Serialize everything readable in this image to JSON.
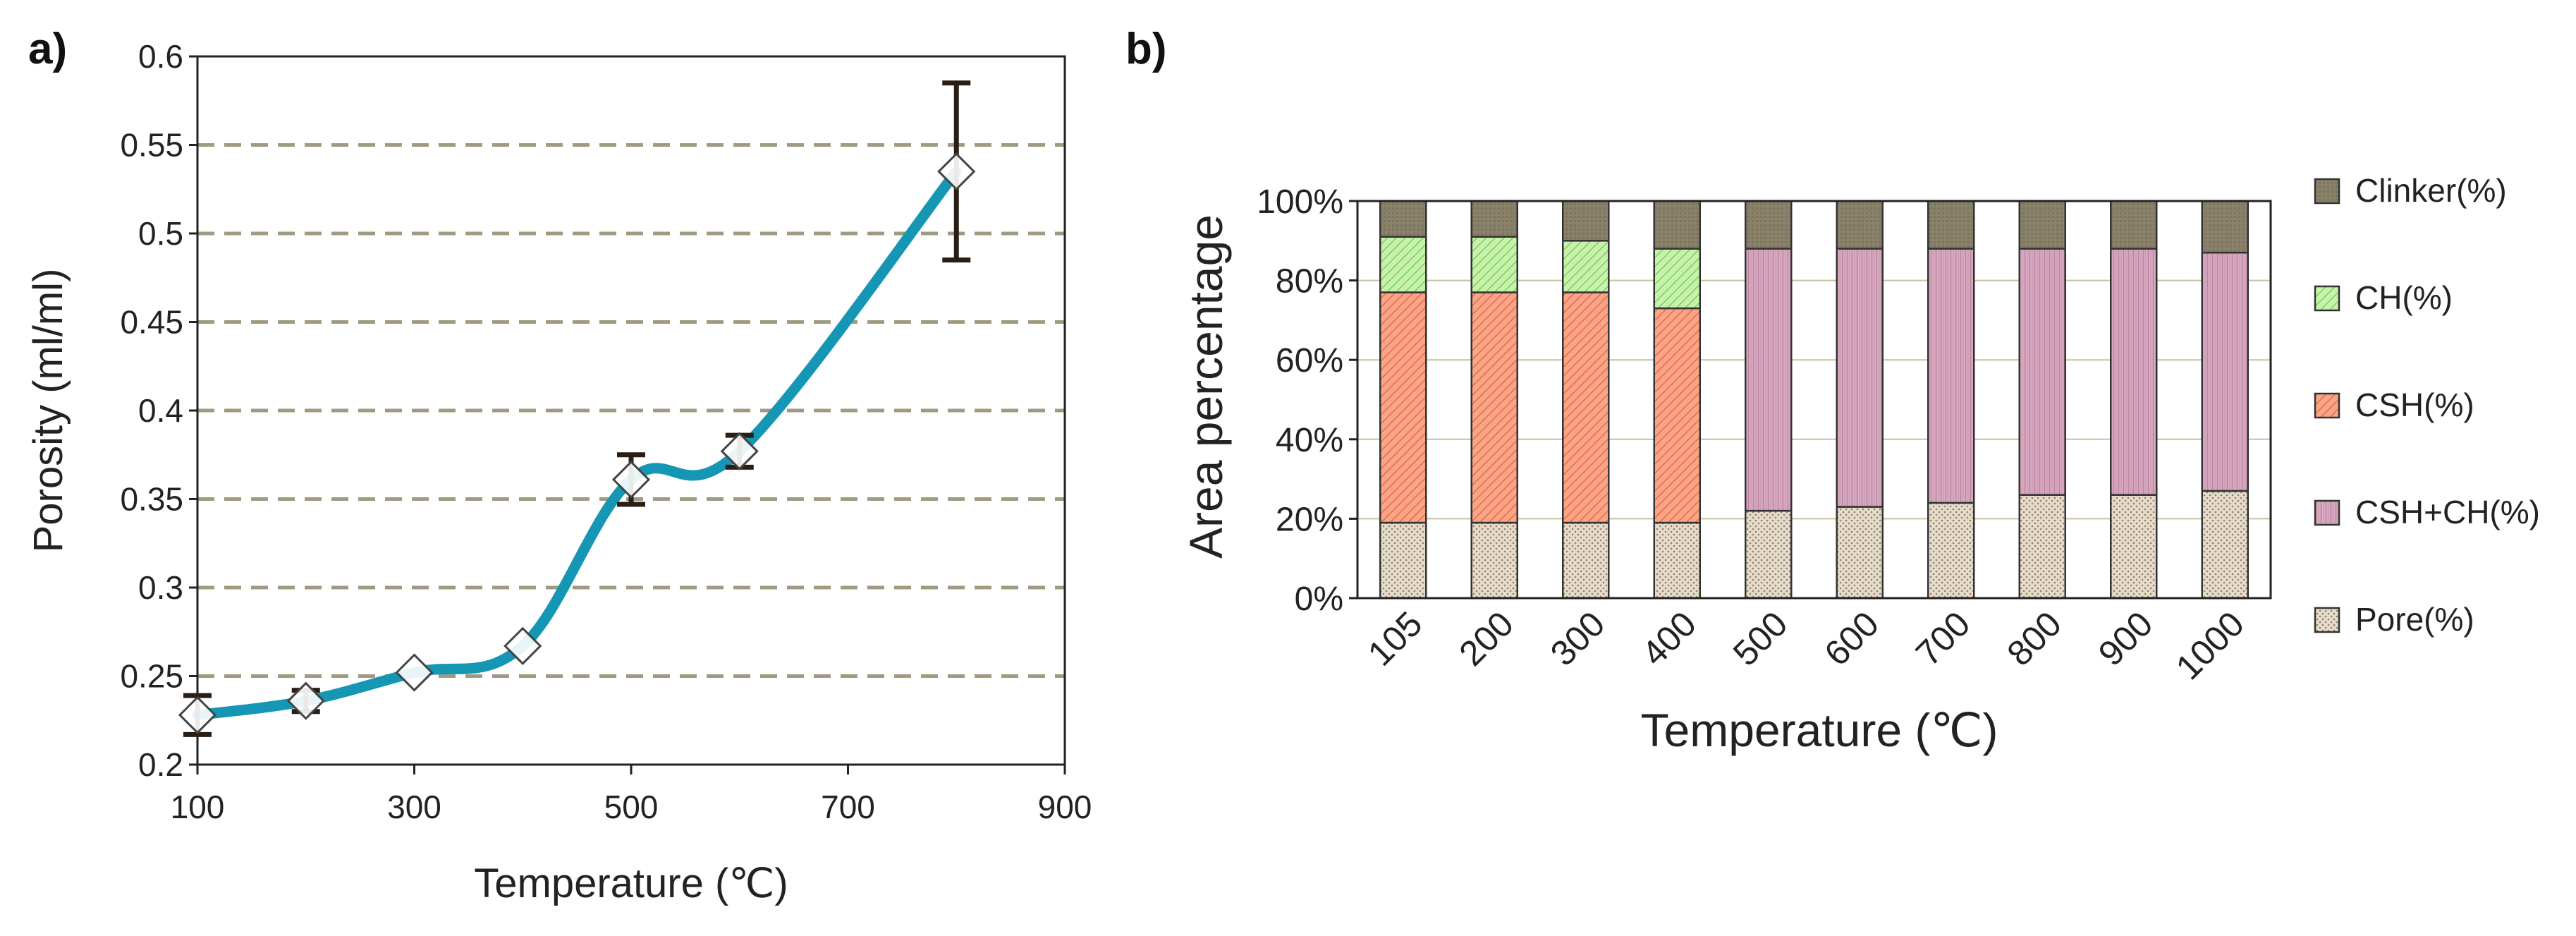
{
  "chart_data": [
    {
      "panel_label": "a)",
      "type": "line",
      "xlabel": "Temperature (℃)",
      "ylabel": "Porosity (ml/ml)",
      "xlim": [
        100,
        900
      ],
      "ylim": [
        0.2,
        0.6
      ],
      "x_ticks": [
        "100",
        "300",
        "500",
        "700",
        "900"
      ],
      "y_ticks": [
        "0.2",
        "0.25",
        "0.3",
        "0.35",
        "0.4",
        "0.45",
        "0.5",
        "0.55",
        "0.6"
      ],
      "grid": "horizontal dashed",
      "series": [
        {
          "name": "Porosity",
          "x": [
            100,
            200,
            300,
            400,
            500,
            600,
            800
          ],
          "y": [
            0.228,
            0.236,
            0.252,
            0.267,
            0.361,
            0.377,
            0.535
          ],
          "error": [
            0.011,
            0.006,
            0.0,
            0.0,
            0.014,
            0.009,
            0.05
          ]
        }
      ],
      "colors": {
        "line": "#1596b4",
        "marker": "#444444",
        "errorbar": "#2a1e14",
        "grid": "#a09a82"
      }
    },
    {
      "panel_label": "b)",
      "type": "bar",
      "stacked": true,
      "xlabel": "Temperature (℃)",
      "ylabel": "Area percentage",
      "ylim": [
        0,
        100
      ],
      "y_ticks": [
        "0%",
        "20%",
        "40%",
        "60%",
        "80%",
        "100%"
      ],
      "categories": [
        "105",
        "200",
        "300",
        "400",
        "500",
        "600",
        "700",
        "800",
        "900",
        "1000"
      ],
      "series": [
        {
          "name": "Pore(%)",
          "values": [
            19,
            19,
            19,
            19,
            22,
            23,
            24,
            26,
            26,
            27
          ]
        },
        {
          "name": "CSH+CH(%)",
          "values": [
            0,
            0,
            0,
            0,
            66,
            65,
            64,
            62,
            62,
            60
          ]
        },
        {
          "name": "CSH(%)",
          "values": [
            58,
            58,
            58,
            54,
            0,
            0,
            0,
            0,
            0,
            0
          ]
        },
        {
          "name": "CH(%)",
          "values": [
            14,
            14,
            13,
            15,
            0,
            0,
            0,
            0,
            0,
            0
          ]
        },
        {
          "name": "Clinker(%)",
          "values": [
            9,
            9,
            10,
            12,
            12,
            12,
            12,
            12,
            12,
            13
          ]
        }
      ],
      "legend": [
        "Clinker(%)",
        "CH(%)",
        "CSH(%)",
        "CSH+CH(%)",
        "Pore(%)"
      ],
      "legend_position": "right",
      "colors": {
        "Pore(%)": "#e4dbc8",
        "CSH+CH(%)": "#d8a6bf",
        "CSH(%)": "#f79c7e",
        "CH(%)": "#b8ea98",
        "Clinker(%)": "#8a816a",
        "grid": "#c9c09a"
      }
    }
  ]
}
